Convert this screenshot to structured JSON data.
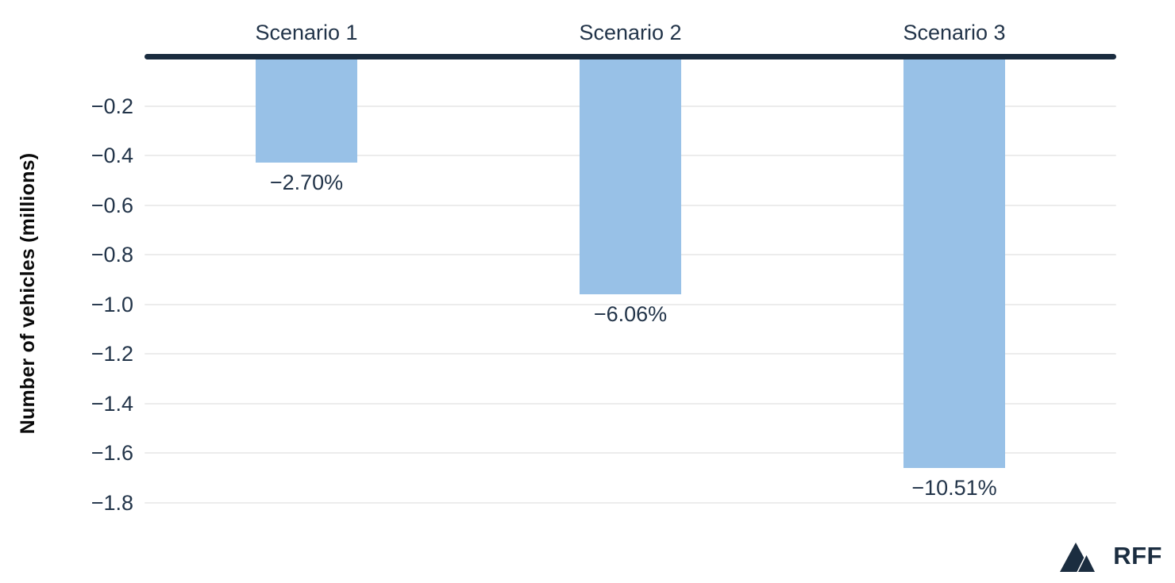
{
  "chart_data": {
    "type": "bar",
    "categories": [
      "Scenario 1",
      "Scenario 2",
      "Scenario 3"
    ],
    "values": [
      -0.43,
      -0.96,
      -1.66
    ],
    "bar_labels": [
      "−2.70%",
      "−6.06%",
      "−10.51%"
    ],
    "title": "",
    "xlabel": "",
    "ylabel": "Number of vehicles (millions)",
    "yticks": [
      -0.2,
      -0.4,
      -0.6,
      -0.8,
      -1.0,
      -1.2,
      -1.4,
      -1.6,
      -1.8
    ],
    "ytick_labels": [
      "−0.2",
      "−0.4",
      "−0.6",
      "−0.8",
      "−1.0",
      "−1.2",
      "−1.4",
      "−1.6",
      "−1.8"
    ],
    "ylim": [
      0,
      -1.9
    ],
    "grid": true,
    "legend": "none",
    "colors": {
      "bar": "#98c1e7",
      "zero_line": "#1a2c3f",
      "text": "#223449",
      "gridline": "#ececec",
      "axis_title": "#0a0a0a"
    }
  },
  "branding": {
    "logo_text": "RFF",
    "logo_icon": "mountains-icon",
    "logo_color": "#1b2d40"
  }
}
